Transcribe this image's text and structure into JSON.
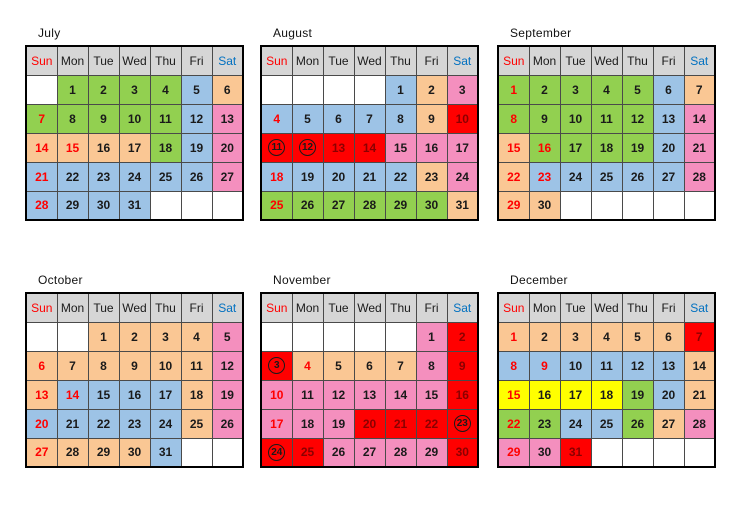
{
  "colors": {
    "header_bg": "#d6d6d6",
    "sun_text": "#ff0000",
    "sat_text": "#0070c0",
    "day_text": "#1a1a1a",
    "holiday_text": "#ff0000",
    "on_red_text": "#8b0000",
    "green": "#92d050",
    "blue": "#9dc3e6",
    "orange": "#fac794",
    "pink": "#f48fbe",
    "red": "#ff0000",
    "yellow": "#ffff00",
    "white": "#ffffff"
  },
  "weekday_header": {
    "labels": [
      "Sun",
      "Mon",
      "Tue",
      "Wed",
      "Thu",
      "Fri",
      "Sat"
    ]
  },
  "months": [
    {
      "title": "July",
      "weeks": [
        [
          null,
          {
            "d": "1",
            "bg": "green"
          },
          {
            "d": "2",
            "bg": "green"
          },
          {
            "d": "3",
            "bg": "green"
          },
          {
            "d": "4",
            "bg": "green"
          },
          {
            "d": "5",
            "bg": "blue"
          },
          {
            "d": "6",
            "bg": "orange"
          }
        ],
        [
          {
            "d": "7",
            "bg": "green",
            "tc": "red"
          },
          {
            "d": "8",
            "bg": "green"
          },
          {
            "d": "9",
            "bg": "green"
          },
          {
            "d": "10",
            "bg": "green"
          },
          {
            "d": "11",
            "bg": "green"
          },
          {
            "d": "12",
            "bg": "blue"
          },
          {
            "d": "13",
            "bg": "pink"
          }
        ],
        [
          {
            "d": "14",
            "bg": "orange",
            "tc": "red"
          },
          {
            "d": "15",
            "bg": "orange",
            "tc": "red"
          },
          {
            "d": "16",
            "bg": "orange"
          },
          {
            "d": "17",
            "bg": "orange"
          },
          {
            "d": "18",
            "bg": "green"
          },
          {
            "d": "19",
            "bg": "blue"
          },
          {
            "d": "20",
            "bg": "pink"
          }
        ],
        [
          {
            "d": "21",
            "bg": "blue",
            "tc": "red"
          },
          {
            "d": "22",
            "bg": "blue"
          },
          {
            "d": "23",
            "bg": "blue"
          },
          {
            "d": "24",
            "bg": "blue"
          },
          {
            "d": "25",
            "bg": "blue"
          },
          {
            "d": "26",
            "bg": "blue"
          },
          {
            "d": "27",
            "bg": "pink"
          }
        ],
        [
          {
            "d": "28",
            "bg": "blue",
            "tc": "red"
          },
          {
            "d": "29",
            "bg": "blue"
          },
          {
            "d": "30",
            "bg": "blue"
          },
          {
            "d": "31",
            "bg": "blue"
          },
          null,
          null,
          null
        ]
      ]
    },
    {
      "title": "August",
      "weeks": [
        [
          null,
          null,
          null,
          null,
          {
            "d": "1",
            "bg": "blue"
          },
          {
            "d": "2",
            "bg": "orange"
          },
          {
            "d": "3",
            "bg": "pink"
          }
        ],
        [
          {
            "d": "4",
            "bg": "blue",
            "tc": "red"
          },
          {
            "d": "5",
            "bg": "blue"
          },
          {
            "d": "6",
            "bg": "blue"
          },
          {
            "d": "7",
            "bg": "blue"
          },
          {
            "d": "8",
            "bg": "blue"
          },
          {
            "d": "9",
            "bg": "orange"
          },
          {
            "d": "10",
            "bg": "red",
            "tc": "darkred"
          }
        ],
        [
          {
            "d": "11",
            "bg": "red",
            "circled": true
          },
          {
            "d": "12",
            "bg": "red",
            "circled": true
          },
          {
            "d": "13",
            "bg": "red",
            "tc": "darkred"
          },
          {
            "d": "14",
            "bg": "red",
            "tc": "darkred"
          },
          {
            "d": "15",
            "bg": "pink"
          },
          {
            "d": "16",
            "bg": "pink"
          },
          {
            "d": "17",
            "bg": "pink"
          }
        ],
        [
          {
            "d": "18",
            "bg": "blue",
            "tc": "red"
          },
          {
            "d": "19",
            "bg": "blue"
          },
          {
            "d": "20",
            "bg": "blue"
          },
          {
            "d": "21",
            "bg": "blue"
          },
          {
            "d": "22",
            "bg": "blue"
          },
          {
            "d": "23",
            "bg": "orange"
          },
          {
            "d": "24",
            "bg": "pink"
          }
        ],
        [
          {
            "d": "25",
            "bg": "green",
            "tc": "red"
          },
          {
            "d": "26",
            "bg": "green"
          },
          {
            "d": "27",
            "bg": "green"
          },
          {
            "d": "28",
            "bg": "green"
          },
          {
            "d": "29",
            "bg": "green"
          },
          {
            "d": "30",
            "bg": "green"
          },
          {
            "d": "31",
            "bg": "orange"
          }
        ]
      ]
    },
    {
      "title": "September",
      "weeks": [
        [
          {
            "d": "1",
            "bg": "green",
            "tc": "red"
          },
          {
            "d": "2",
            "bg": "green"
          },
          {
            "d": "3",
            "bg": "green"
          },
          {
            "d": "4",
            "bg": "green"
          },
          {
            "d": "5",
            "bg": "green"
          },
          {
            "d": "6",
            "bg": "blue"
          },
          {
            "d": "7",
            "bg": "orange"
          }
        ],
        [
          {
            "d": "8",
            "bg": "green",
            "tc": "red"
          },
          {
            "d": "9",
            "bg": "green"
          },
          {
            "d": "10",
            "bg": "green"
          },
          {
            "d": "11",
            "bg": "green"
          },
          {
            "d": "12",
            "bg": "green"
          },
          {
            "d": "13",
            "bg": "blue"
          },
          {
            "d": "14",
            "bg": "pink"
          }
        ],
        [
          {
            "d": "15",
            "bg": "orange",
            "tc": "red"
          },
          {
            "d": "16",
            "bg": "green",
            "tc": "red"
          },
          {
            "d": "17",
            "bg": "green"
          },
          {
            "d": "18",
            "bg": "green"
          },
          {
            "d": "19",
            "bg": "green"
          },
          {
            "d": "20",
            "bg": "blue"
          },
          {
            "d": "21",
            "bg": "pink"
          }
        ],
        [
          {
            "d": "22",
            "bg": "orange",
            "tc": "red"
          },
          {
            "d": "23",
            "bg": "blue",
            "tc": "red"
          },
          {
            "d": "24",
            "bg": "blue"
          },
          {
            "d": "25",
            "bg": "blue"
          },
          {
            "d": "26",
            "bg": "blue"
          },
          {
            "d": "27",
            "bg": "blue"
          },
          {
            "d": "28",
            "bg": "pink"
          }
        ],
        [
          {
            "d": "29",
            "bg": "orange",
            "tc": "red"
          },
          {
            "d": "30",
            "bg": "orange"
          },
          null,
          null,
          null,
          null,
          null
        ]
      ]
    },
    {
      "title": "October",
      "weeks": [
        [
          null,
          null,
          {
            "d": "1",
            "bg": "orange"
          },
          {
            "d": "2",
            "bg": "orange"
          },
          {
            "d": "3",
            "bg": "orange"
          },
          {
            "d": "4",
            "bg": "orange"
          },
          {
            "d": "5",
            "bg": "pink"
          }
        ],
        [
          {
            "d": "6",
            "bg": "orange",
            "tc": "red"
          },
          {
            "d": "7",
            "bg": "orange"
          },
          {
            "d": "8",
            "bg": "orange"
          },
          {
            "d": "9",
            "bg": "orange"
          },
          {
            "d": "10",
            "bg": "orange"
          },
          {
            "d": "11",
            "bg": "orange"
          },
          {
            "d": "12",
            "bg": "pink"
          }
        ],
        [
          {
            "d": "13",
            "bg": "orange",
            "tc": "red"
          },
          {
            "d": "14",
            "bg": "blue",
            "tc": "red"
          },
          {
            "d": "15",
            "bg": "blue"
          },
          {
            "d": "16",
            "bg": "blue"
          },
          {
            "d": "17",
            "bg": "blue"
          },
          {
            "d": "18",
            "bg": "orange"
          },
          {
            "d": "19",
            "bg": "pink"
          }
        ],
        [
          {
            "d": "20",
            "bg": "blue",
            "tc": "red"
          },
          {
            "d": "21",
            "bg": "blue"
          },
          {
            "d": "22",
            "bg": "blue"
          },
          {
            "d": "23",
            "bg": "blue"
          },
          {
            "d": "24",
            "bg": "blue"
          },
          {
            "d": "25",
            "bg": "orange"
          },
          {
            "d": "26",
            "bg": "pink"
          }
        ],
        [
          {
            "d": "27",
            "bg": "orange",
            "tc": "red"
          },
          {
            "d": "28",
            "bg": "orange"
          },
          {
            "d": "29",
            "bg": "orange"
          },
          {
            "d": "30",
            "bg": "orange"
          },
          {
            "d": "31",
            "bg": "blue"
          },
          null,
          null
        ]
      ]
    },
    {
      "title": "November",
      "weeks": [
        [
          null,
          null,
          null,
          null,
          null,
          {
            "d": "1",
            "bg": "pink"
          },
          {
            "d": "2",
            "bg": "red",
            "tc": "darkred"
          }
        ],
        [
          {
            "d": "3",
            "bg": "red",
            "circled": true
          },
          {
            "d": "4",
            "bg": "orange",
            "tc": "red"
          },
          {
            "d": "5",
            "bg": "orange"
          },
          {
            "d": "6",
            "bg": "orange"
          },
          {
            "d": "7",
            "bg": "orange"
          },
          {
            "d": "8",
            "bg": "pink"
          },
          {
            "d": "9",
            "bg": "red",
            "tc": "darkred"
          }
        ],
        [
          {
            "d": "10",
            "bg": "pink",
            "tc": "red"
          },
          {
            "d": "11",
            "bg": "pink"
          },
          {
            "d": "12",
            "bg": "pink"
          },
          {
            "d": "13",
            "bg": "pink"
          },
          {
            "d": "14",
            "bg": "pink"
          },
          {
            "d": "15",
            "bg": "pink"
          },
          {
            "d": "16",
            "bg": "red",
            "tc": "darkred"
          }
        ],
        [
          {
            "d": "17",
            "bg": "pink",
            "tc": "red"
          },
          {
            "d": "18",
            "bg": "pink"
          },
          {
            "d": "19",
            "bg": "pink"
          },
          {
            "d": "20",
            "bg": "red",
            "tc": "darkred"
          },
          {
            "d": "21",
            "bg": "red",
            "tc": "darkred"
          },
          {
            "d": "22",
            "bg": "red",
            "tc": "darkred"
          },
          {
            "d": "23",
            "bg": "red",
            "circled": true
          }
        ],
        [
          {
            "d": "24",
            "bg": "red",
            "circled": true
          },
          {
            "d": "25",
            "bg": "red",
            "tc": "darkred"
          },
          {
            "d": "26",
            "bg": "pink"
          },
          {
            "d": "27",
            "bg": "pink"
          },
          {
            "d": "28",
            "bg": "pink"
          },
          {
            "d": "29",
            "bg": "pink"
          },
          {
            "d": "30",
            "bg": "red",
            "tc": "darkred"
          }
        ]
      ]
    },
    {
      "title": "December",
      "weeks": [
        [
          {
            "d": "1",
            "bg": "orange",
            "tc": "red"
          },
          {
            "d": "2",
            "bg": "orange"
          },
          {
            "d": "3",
            "bg": "orange"
          },
          {
            "d": "4",
            "bg": "orange"
          },
          {
            "d": "5",
            "bg": "orange"
          },
          {
            "d": "6",
            "bg": "orange"
          },
          {
            "d": "7",
            "bg": "red",
            "tc": "darkred"
          }
        ],
        [
          {
            "d": "8",
            "bg": "blue",
            "tc": "red"
          },
          {
            "d": "9",
            "bg": "blue",
            "tc": "red"
          },
          {
            "d": "10",
            "bg": "blue"
          },
          {
            "d": "11",
            "bg": "blue"
          },
          {
            "d": "12",
            "bg": "blue"
          },
          {
            "d": "13",
            "bg": "blue"
          },
          {
            "d": "14",
            "bg": "orange"
          }
        ],
        [
          {
            "d": "15",
            "bg": "yellow",
            "tc": "red"
          },
          {
            "d": "16",
            "bg": "yellow"
          },
          {
            "d": "17",
            "bg": "yellow"
          },
          {
            "d": "18",
            "bg": "yellow"
          },
          {
            "d": "19",
            "bg": "green"
          },
          {
            "d": "20",
            "bg": "blue"
          },
          {
            "d": "21",
            "bg": "orange"
          }
        ],
        [
          {
            "d": "22",
            "bg": "green",
            "tc": "red"
          },
          {
            "d": "23",
            "bg": "green"
          },
          {
            "d": "24",
            "bg": "blue"
          },
          {
            "d": "25",
            "bg": "blue"
          },
          {
            "d": "26",
            "bg": "green"
          },
          {
            "d": "27",
            "bg": "orange"
          },
          {
            "d": "28",
            "bg": "pink"
          }
        ],
        [
          {
            "d": "29",
            "bg": "pink",
            "tc": "red"
          },
          {
            "d": "30",
            "bg": "pink"
          },
          {
            "d": "31",
            "bg": "red",
            "tc": "darkred"
          },
          null,
          null,
          null,
          null
        ]
      ]
    }
  ]
}
